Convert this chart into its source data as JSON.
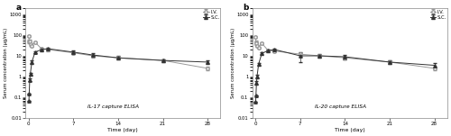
{
  "panel_a": {
    "title": "IL-17 capture ELISA",
    "iv_x": [
      0.042,
      0.083,
      0.167,
      0.25,
      0.5,
      1,
      2,
      3,
      7,
      10,
      14,
      21,
      28
    ],
    "iv_y": [
      90,
      50,
      50,
      35,
      30,
      45,
      22,
      20,
      14,
      10,
      8,
      6,
      2.5
    ],
    "sc_x": [
      0.042,
      0.083,
      0.167,
      0.25,
      0.5,
      1,
      2,
      3,
      7,
      10,
      14,
      21,
      28
    ],
    "sc_y": [
      0.07,
      0.15,
      0.7,
      1.3,
      5,
      15,
      20,
      22,
      15,
      11,
      8,
      6,
      5
    ],
    "iv_err": [
      10,
      8,
      8,
      5,
      4,
      5,
      3,
      3,
      2,
      1.5,
      1,
      1,
      0.5
    ],
    "sc_err": [
      0,
      0,
      0.1,
      0.2,
      0.8,
      2,
      3,
      3,
      3,
      2,
      1.5,
      1,
      1
    ]
  },
  "panel_b": {
    "title": "IL-20 capture ELISA",
    "iv_x": [
      0.042,
      0.083,
      0.167,
      0.25,
      0.5,
      1,
      2,
      3,
      7,
      10,
      14,
      21,
      28
    ],
    "iv_y": [
      80,
      45,
      40,
      30,
      25,
      40,
      18,
      17,
      12,
      10,
      8,
      5,
      2.5
    ],
    "sc_x": [
      0.042,
      0.083,
      0.167,
      0.25,
      0.5,
      1,
      2,
      3,
      7,
      10,
      14,
      21,
      28
    ],
    "sc_y": [
      0.06,
      0.12,
      0.5,
      1.0,
      4,
      13,
      18,
      20,
      10,
      10,
      9,
      5,
      3.5
    ],
    "iv_err": [
      10,
      8,
      6,
      4,
      3,
      5,
      2,
      2,
      2,
      1.5,
      1,
      1,
      0.5
    ],
    "sc_err": [
      0,
      0,
      0.1,
      0.2,
      0.6,
      2,
      3,
      3,
      5,
      2,
      2,
      1,
      1
    ]
  },
  "xlabel": "Time (day)",
  "ylabel_a": "Serum concentration (μg/mL)",
  "ylabel_b": "Serum concentration (μg/mL)",
  "ylim": [
    0.01,
    2000
  ],
  "xlim": [
    -0.5,
    30
  ],
  "xticks": [
    0,
    7,
    14,
    21,
    28
  ],
  "bg_color": "#ffffff",
  "iv_color": "#999999",
  "sc_color": "#333333",
  "label_iv": "I.V.",
  "label_sc": "S.C.",
  "panel_labels": [
    "a",
    "b"
  ]
}
